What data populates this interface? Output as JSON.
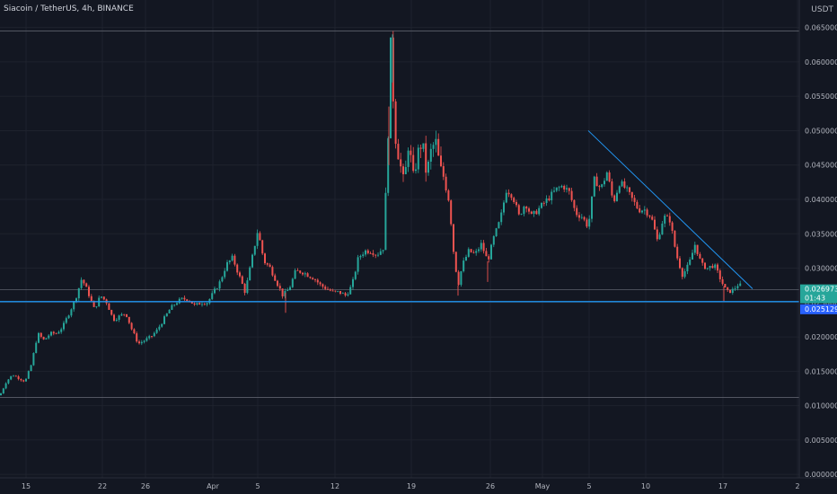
{
  "header": {
    "symbol": "Siacoin / TetherUS",
    "interval": "4h",
    "exchange": "BINANCE"
  },
  "currency": "USDT",
  "colors": {
    "background": "#131722",
    "grid": "#1e222d",
    "up": "#26a69a",
    "down": "#ef5350",
    "trendline": "#2196f3",
    "support": "#2196f3",
    "price_tag": "#26a69a",
    "support_tag": "#2962ff",
    "axis_text": "#b2b5be"
  },
  "chart_data": {
    "type": "candlestick",
    "ylim": [
      -0.0005,
      0.069
    ],
    "y_ticks": [
      {
        "value": 0.0,
        "label": "0.000000"
      },
      {
        "value": 0.005,
        "label": "0.005000"
      },
      {
        "value": 0.01,
        "label": "0.010000"
      },
      {
        "value": 0.015,
        "label": "0.015000"
      },
      {
        "value": 0.02,
        "label": "0.020000"
      },
      {
        "value": 0.025,
        "label": "0.025000"
      },
      {
        "value": 0.03,
        "label": "0.030000"
      },
      {
        "value": 0.035,
        "label": "0.035000"
      },
      {
        "value": 0.04,
        "label": "0.040000"
      },
      {
        "value": 0.045,
        "label": "0.045000"
      },
      {
        "value": 0.05,
        "label": "0.050000"
      },
      {
        "value": 0.055,
        "label": "0.055000"
      },
      {
        "value": 0.06,
        "label": "0.060000"
      },
      {
        "value": 0.065,
        "label": "0.065000"
      }
    ],
    "x_ticks": [
      "15",
      "22",
      "26",
      "Apr",
      "5",
      "12",
      "19",
      "26",
      "May",
      "5",
      "10",
      "17",
      "2"
    ],
    "path_points": [
      [
        0,
        0.0115
      ],
      [
        7,
        0.0135
      ],
      [
        14,
        0.0145
      ],
      [
        21,
        0.014
      ],
      [
        28,
        0.0135
      ],
      [
        35,
        0.016
      ],
      [
        42,
        0.0205
      ],
      [
        49,
        0.0195
      ],
      [
        56,
        0.0205
      ],
      [
        63,
        0.0205
      ],
      [
        70,
        0.0215
      ],
      [
        77,
        0.0235
      ],
      [
        84,
        0.0255
      ],
      [
        91,
        0.0285
      ],
      [
        98,
        0.0265
      ],
      [
        105,
        0.024
      ],
      [
        112,
        0.026
      ],
      [
        119,
        0.025
      ],
      [
        126,
        0.0225
      ],
      [
        133,
        0.023
      ],
      [
        140,
        0.0235
      ],
      [
        147,
        0.021
      ],
      [
        154,
        0.019
      ],
      [
        161,
        0.0195
      ],
      [
        168,
        0.02
      ],
      [
        175,
        0.021
      ],
      [
        182,
        0.0225
      ],
      [
        189,
        0.024
      ],
      [
        196,
        0.025
      ],
      [
        203,
        0.0255
      ],
      [
        210,
        0.0255
      ],
      [
        217,
        0.0245
      ],
      [
        224,
        0.025
      ],
      [
        231,
        0.025
      ],
      [
        238,
        0.0265
      ],
      [
        245,
        0.028
      ],
      [
        252,
        0.0305
      ],
      [
        259,
        0.0315
      ],
      [
        266,
        0.029
      ],
      [
        273,
        0.0265
      ],
      [
        280,
        0.031
      ],
      [
        287,
        0.0355
      ],
      [
        294,
        0.031
      ],
      [
        301,
        0.03
      ],
      [
        308,
        0.028
      ],
      [
        315,
        0.026
      ],
      [
        322,
        0.027
      ],
      [
        329,
        0.0295
      ],
      [
        336,
        0.0295
      ],
      [
        343,
        0.029
      ],
      [
        350,
        0.0285
      ],
      [
        357,
        0.0275
      ],
      [
        364,
        0.027
      ],
      [
        371,
        0.0265
      ],
      [
        378,
        0.0265
      ],
      [
        385,
        0.026
      ],
      [
        392,
        0.0275
      ],
      [
        399,
        0.0315
      ],
      [
        406,
        0.0325
      ],
      [
        413,
        0.0325
      ],
      [
        420,
        0.032
      ],
      [
        427,
        0.033
      ],
      [
        431,
        0.045
      ],
      [
        435,
        0.062
      ],
      [
        440,
        0.0495
      ],
      [
        445,
        0.0455
      ],
      [
        450,
        0.042
      ],
      [
        455,
        0.0485
      ],
      [
        460,
        0.043
      ],
      [
        465,
        0.0465
      ],
      [
        470,
        0.0485
      ],
      [
        475,
        0.0435
      ],
      [
        480,
        0.047
      ],
      [
        485,
        0.0485
      ],
      [
        490,
        0.0445
      ],
      [
        495,
        0.043
      ],
      [
        500,
        0.04
      ],
      [
        505,
        0.0325
      ],
      [
        510,
        0.0275
      ],
      [
        515,
        0.0305
      ],
      [
        522,
        0.0325
      ],
      [
        529,
        0.032
      ],
      [
        536,
        0.0335
      ],
      [
        543,
        0.031
      ],
      [
        550,
        0.0345
      ],
      [
        557,
        0.037
      ],
      [
        564,
        0.0415
      ],
      [
        571,
        0.0405
      ],
      [
        578,
        0.0375
      ],
      [
        585,
        0.0395
      ],
      [
        592,
        0.0375
      ],
      [
        599,
        0.0385
      ],
      [
        606,
        0.0395
      ],
      [
        613,
        0.0405
      ],
      [
        620,
        0.0415
      ],
      [
        627,
        0.042
      ],
      [
        634,
        0.041
      ],
      [
        641,
        0.038
      ],
      [
        648,
        0.0375
      ],
      [
        655,
        0.036
      ],
      [
        662,
        0.043
      ],
      [
        669,
        0.0415
      ],
      [
        676,
        0.044
      ],
      [
        683,
        0.0395
      ],
      [
        690,
        0.0425
      ],
      [
        697,
        0.0415
      ],
      [
        704,
        0.04
      ],
      [
        711,
        0.0385
      ],
      [
        718,
        0.0385
      ],
      [
        725,
        0.0375
      ],
      [
        732,
        0.034
      ],
      [
        739,
        0.0375
      ],
      [
        746,
        0.037
      ],
      [
        753,
        0.032
      ],
      [
        760,
        0.029
      ],
      [
        767,
        0.0305
      ],
      [
        774,
        0.0335
      ],
      [
        781,
        0.0305
      ],
      [
        788,
        0.03
      ],
      [
        795,
        0.0305
      ],
      [
        802,
        0.0285
      ],
      [
        809,
        0.0265
      ],
      [
        816,
        0.0268
      ],
      [
        823,
        0.0278
      ],
      [
        826,
        0.027
      ]
    ],
    "spikes": [
      {
        "x": 437,
        "high": 0.064
      },
      {
        "x": 433,
        "low": 0.045
      },
      {
        "x": 510,
        "low": 0.026
      },
      {
        "x": 543,
        "low": 0.028
      },
      {
        "x": 806,
        "low": 0.0252
      },
      {
        "x": 318,
        "low": 0.0235
      }
    ],
    "trendline": {
      "from": [
        655,
        0.05
      ],
      "to": [
        838,
        0.027
      ]
    },
    "support_level": 0.025129,
    "resistance_level": 0.0645,
    "lower_level": 0.0112,
    "current_price_level": 0.02685,
    "last_price": {
      "label": "0.026973",
      "countdown": "01:43"
    },
    "support_label": "0.025129"
  }
}
